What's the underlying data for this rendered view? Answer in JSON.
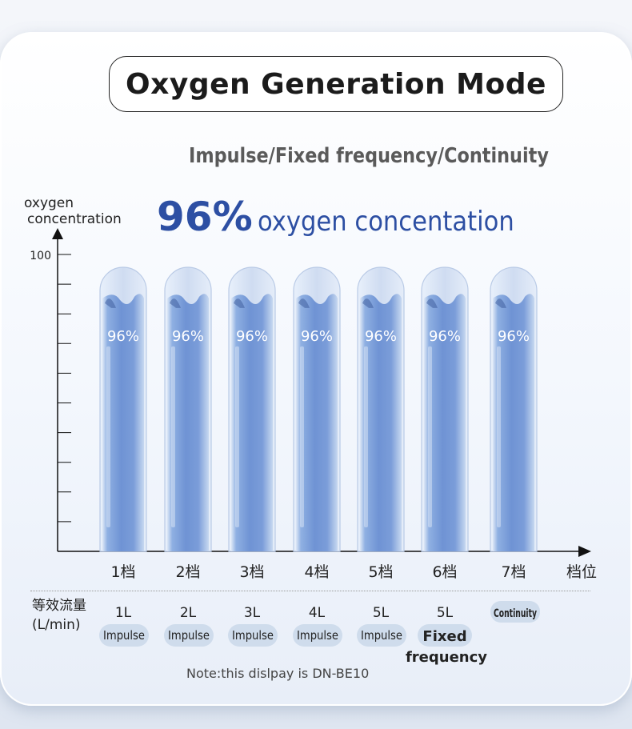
{
  "title": "Oxygen Generation Mode",
  "subtitle": "Impulse/Fixed frequency/Continuity",
  "headline": {
    "big": "96%",
    "rest": "oxygen concentation"
  },
  "flow_header": {
    "line1": "等效流量",
    "line2": "(L/min)"
  },
  "note": "Note:this dislpay is DN-BE10",
  "colors": {
    "tube": "#6f93d4",
    "tube_light": "#bcd1ee",
    "headline": "#2d4fa3",
    "pill": "#cfdcec"
  },
  "chart_data": {
    "type": "bar",
    "title": "",
    "ylabel": "oxygen concentration",
    "ylabel_lines": [
      "oxygen",
      "concentration"
    ],
    "xlabel": "档位",
    "ylim": [
      0,
      100
    ],
    "yticks": [
      100
    ],
    "categories": [
      "1档",
      "2档",
      "3档",
      "4档",
      "5档",
      "6档",
      "7档"
    ],
    "values": [
      96,
      96,
      96,
      96,
      96,
      96,
      96
    ],
    "data_labels": [
      "96%",
      "96%",
      "96%",
      "96%",
      "96%",
      "96%",
      "96%"
    ],
    "flow": [
      "1L",
      "2L",
      "3L",
      "4L",
      "5L",
      "5L",
      ""
    ],
    "modes": [
      "Impulse",
      "Impulse",
      "Impulse",
      "Impulse",
      "Impulse",
      "Fixed frequency",
      "Continuity"
    ]
  }
}
